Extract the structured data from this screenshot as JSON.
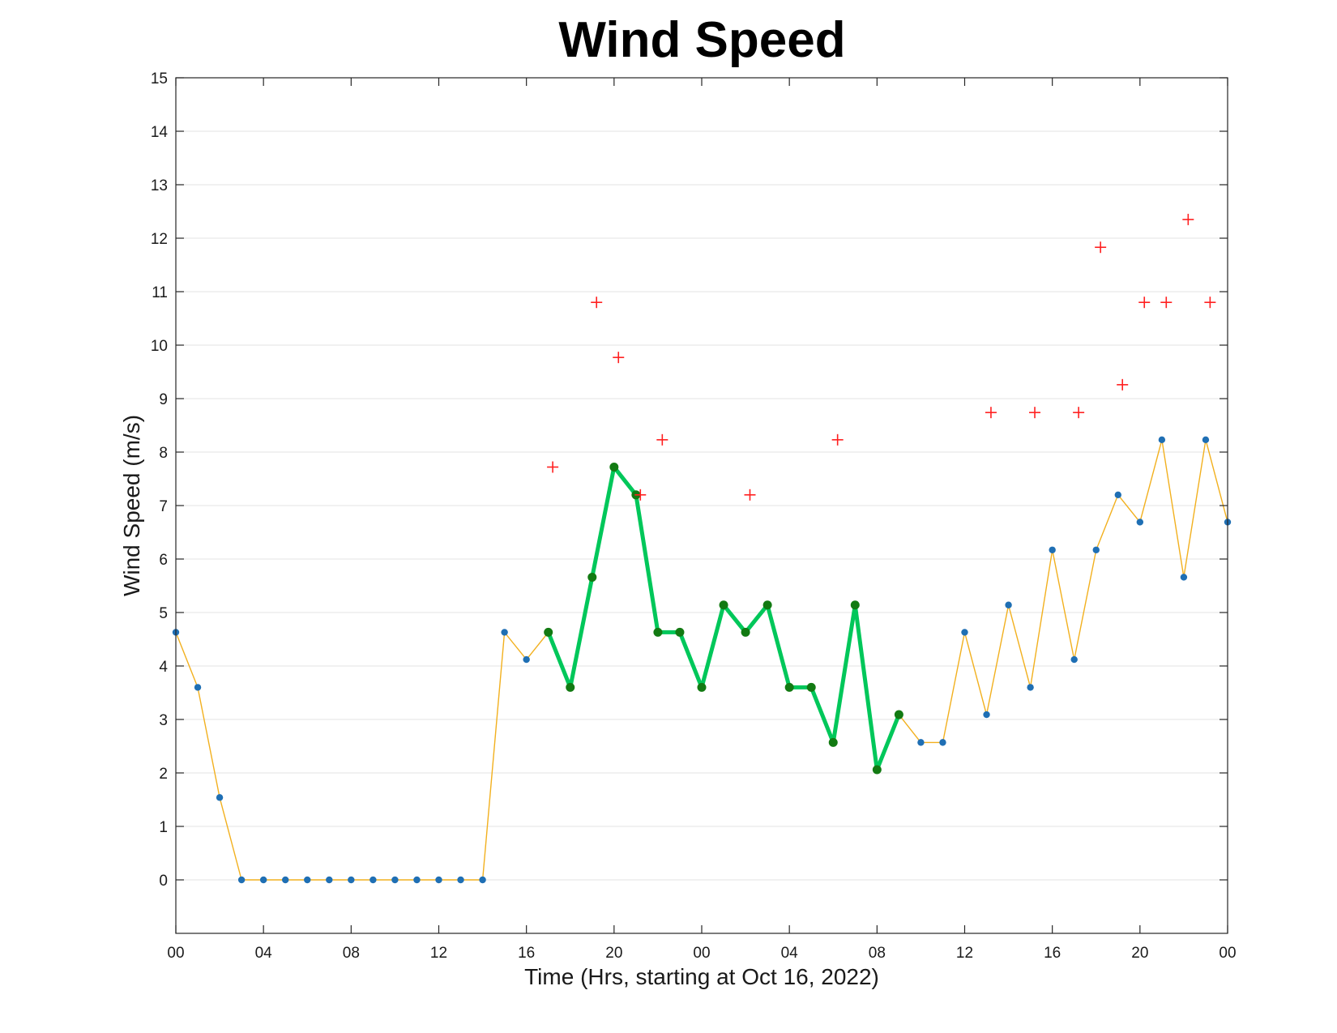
{
  "chart_data": {
    "type": "line",
    "title": "Wind Speed",
    "xlabel": "Time (Hrs, starting at Oct 16, 2022)",
    "ylabel": "Wind Speed (m/s)",
    "xlim": [
      0,
      48
    ],
    "ylim": [
      -1,
      15
    ],
    "x_ticks": [
      {
        "x": 0,
        "label": "00"
      },
      {
        "x": 4,
        "label": "04"
      },
      {
        "x": 8,
        "label": "08"
      },
      {
        "x": 12,
        "label": "12"
      },
      {
        "x": 16,
        "label": "16"
      },
      {
        "x": 20,
        "label": "20"
      },
      {
        "x": 24,
        "label": "00"
      },
      {
        "x": 28,
        "label": "04"
      },
      {
        "x": 32,
        "label": "08"
      },
      {
        "x": 36,
        "label": "12"
      },
      {
        "x": 40,
        "label": "16"
      },
      {
        "x": 44,
        "label": "20"
      },
      {
        "x": 48,
        "label": "00"
      }
    ],
    "y_ticks": [
      0,
      1,
      2,
      3,
      4,
      5,
      6,
      7,
      8,
      9,
      10,
      11,
      12,
      13,
      14,
      15
    ],
    "grid": "horizontal",
    "series": [
      {
        "color": "#f2b01e",
        "marker_color": "#1f6fb4",
        "x": [
          0,
          1,
          2,
          3,
          4,
          5,
          6,
          7,
          8,
          9,
          10,
          11,
          12,
          13,
          14,
          15,
          16,
          17,
          18,
          19,
          20,
          21,
          22,
          23,
          24,
          25,
          26,
          27,
          28,
          29,
          30,
          31,
          32,
          33,
          34,
          35,
          36,
          37,
          38,
          39,
          40,
          41,
          42,
          43,
          44,
          45,
          46,
          47,
          48
        ],
        "y": [
          4.63,
          3.6,
          1.54,
          0,
          0,
          0,
          0,
          0,
          0,
          0,
          0,
          0,
          0,
          0,
          0,
          4.63,
          4.12,
          4.63,
          3.6,
          5.66,
          7.72,
          7.2,
          4.63,
          4.63,
          3.6,
          5.14,
          4.63,
          5.14,
          3.6,
          3.6,
          2.57,
          5.14,
          2.06,
          3.09,
          2.57,
          2.57,
          4.63,
          3.09,
          5.14,
          3.6,
          6.17,
          4.12,
          6.17,
          7.2,
          6.69,
          8.23,
          5.66,
          8.23,
          6.69
        ]
      },
      {
        "color": "#00c75a",
        "marker_color": "#127a12",
        "x": [
          17,
          18,
          19,
          20,
          21,
          22,
          23,
          24,
          25,
          26,
          27,
          28,
          29,
          30,
          31,
          32,
          33
        ],
        "y": [
          4.63,
          3.6,
          5.66,
          7.72,
          7.2,
          4.63,
          4.63,
          3.6,
          5.14,
          4.63,
          5.14,
          3.6,
          3.6,
          2.57,
          5.14,
          2.06,
          3.09
        ]
      },
      {
        "color": "#ff2020",
        "marker": "+",
        "x": [
          17.2,
          19.2,
          20.2,
          21.2,
          22.2,
          26.2,
          30.2,
          37.2,
          39.2,
          41.2,
          42.2,
          43.2,
          44.2,
          45.2,
          46.2,
          47.2
        ],
        "y": [
          7.72,
          10.8,
          9.77,
          7.2,
          8.23,
          7.2,
          8.23,
          8.74,
          8.74,
          8.74,
          11.83,
          9.26,
          10.8,
          10.8,
          12.35,
          10.8
        ]
      }
    ]
  }
}
